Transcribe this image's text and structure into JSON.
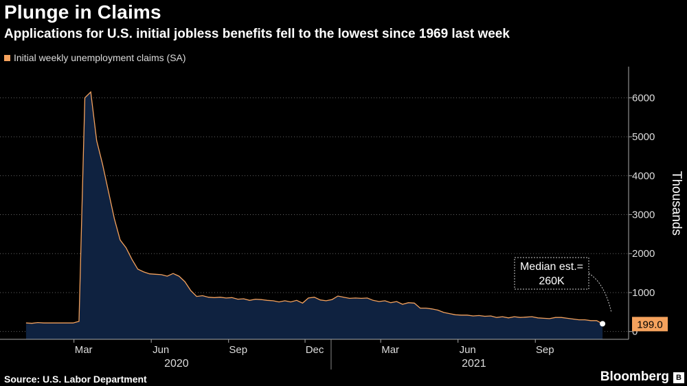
{
  "chart_data": {
    "type": "area",
    "title": "Plunge in Claims",
    "subtitle": "Applications for U.S. initial jobless benefits fell to the lowest since 1969 last week",
    "legend": "Initial weekly unemployment claims (SA)",
    "ylabel": "Thousands",
    "ylim": [
      -200,
      6800
    ],
    "yticks": [
      0,
      1000,
      2000,
      3000,
      4000,
      5000,
      6000
    ],
    "xticks": [
      "Mar",
      "Jun",
      "Sep",
      "Dec",
      "Mar",
      "Jun",
      "Sep"
    ],
    "years": [
      "2020",
      "2021"
    ],
    "series": [
      {
        "name": "Initial weekly unemployment claims (SA)",
        "x": [
          "2020-01-04",
          "2020-01-11",
          "2020-01-18",
          "2020-01-25",
          "2020-02-01",
          "2020-02-08",
          "2020-02-15",
          "2020-02-22",
          "2020-02-29",
          "2020-03-07",
          "2020-03-14",
          "2020-03-21",
          "2020-03-28",
          "2020-04-04",
          "2020-04-11",
          "2020-04-18",
          "2020-04-25",
          "2020-05-02",
          "2020-05-09",
          "2020-05-16",
          "2020-05-23",
          "2020-05-30",
          "2020-06-06",
          "2020-06-13",
          "2020-06-20",
          "2020-06-27",
          "2020-07-04",
          "2020-07-11",
          "2020-07-18",
          "2020-07-25",
          "2020-08-01",
          "2020-08-08",
          "2020-08-15",
          "2020-08-22",
          "2020-08-29",
          "2020-09-05",
          "2020-09-12",
          "2020-09-19",
          "2020-09-26",
          "2020-10-03",
          "2020-10-10",
          "2020-10-17",
          "2020-10-24",
          "2020-10-31",
          "2020-11-07",
          "2020-11-14",
          "2020-11-21",
          "2020-11-28",
          "2020-12-05",
          "2020-12-12",
          "2020-12-19",
          "2020-12-26",
          "2021-01-02",
          "2021-01-09",
          "2021-01-16",
          "2021-01-23",
          "2021-01-30",
          "2021-02-06",
          "2021-02-13",
          "2021-02-20",
          "2021-02-27",
          "2021-03-06",
          "2021-03-13",
          "2021-03-20",
          "2021-03-27",
          "2021-04-03",
          "2021-04-10",
          "2021-04-17",
          "2021-04-24",
          "2021-05-01",
          "2021-05-08",
          "2021-05-15",
          "2021-05-22",
          "2021-05-29",
          "2021-06-05",
          "2021-06-12",
          "2021-06-19",
          "2021-06-26",
          "2021-07-03",
          "2021-07-10",
          "2021-07-17",
          "2021-07-24",
          "2021-07-31",
          "2021-08-07",
          "2021-08-14",
          "2021-08-21",
          "2021-08-28",
          "2021-09-04",
          "2021-09-11",
          "2021-09-18",
          "2021-09-25",
          "2021-10-02",
          "2021-10-09",
          "2021-10-16",
          "2021-10-23",
          "2021-10-30",
          "2021-11-06",
          "2021-11-13",
          "2021-11-20"
        ],
        "values": [
          220,
          210,
          230,
          220,
          220,
          220,
          220,
          220,
          220,
          260,
          6000,
          6150,
          4900,
          4300,
          3600,
          2900,
          2350,
          2150,
          1850,
          1600,
          1530,
          1480,
          1470,
          1460,
          1420,
          1490,
          1420,
          1280,
          1050,
          900,
          920,
          880,
          870,
          880,
          860,
          870,
          830,
          840,
          800,
          830,
          820,
          800,
          790,
          760,
          790,
          760,
          800,
          730,
          860,
          880,
          810,
          790,
          820,
          910,
          880,
          850,
          860,
          850,
          860,
          800,
          770,
          790,
          740,
          770,
          700,
          740,
          730,
          600,
          600,
          580,
          550,
          490,
          460,
          430,
          420,
          420,
          400,
          410,
          390,
          400,
          360,
          380,
          350,
          380,
          360,
          370,
          380,
          350,
          340,
          330,
          360,
          360,
          340,
          320,
          300,
          300,
          280,
          280,
          199
        ]
      }
    ],
    "annotation": {
      "text_lines": [
        "Median est.=",
        "260K"
      ]
    },
    "last_value_label": "199.0"
  },
  "footer": {
    "source": "Source: U.S. Labor Department",
    "brand": "Bloomberg",
    "brand_badge": "B"
  },
  "colors": {
    "background": "#000000",
    "line": "#f5a25d",
    "fill": "#0f2240",
    "label_bg": "#f5a25d"
  }
}
